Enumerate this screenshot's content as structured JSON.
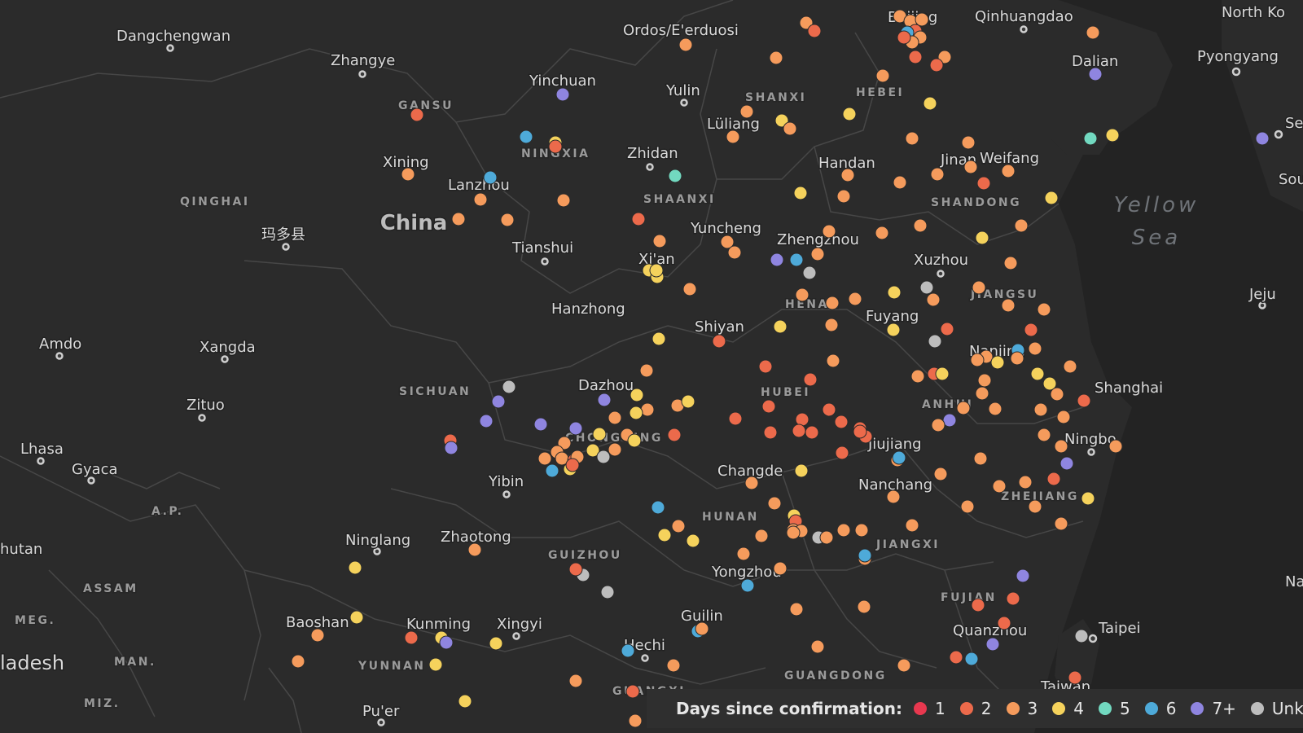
{
  "colors": {
    "background": "#2b2b2b",
    "sea": "#232323",
    "border": "#4a4a4a"
  },
  "map_labels": {
    "cities": [
      "Dangchengwan",
      "Zhangye",
      "Yinchuan",
      "Ordos/E'erduosi",
      "Yulin",
      "Beijing",
      "Qinhuangdao",
      "Dalian",
      "Pyongyang",
      "North Ko",
      "Xining",
      "Lanzhou",
      "Zhidan",
      "Lüliang",
      "Handan",
      "Jinan",
      "Weifang",
      "Tianshui",
      "Yuncheng",
      "Zhengzhou",
      "Xi'an",
      "Xuzhou",
      "Hanzhong",
      "Shiyan",
      "Fuyang",
      "Nanjing",
      "Shanghai",
      "Dazhou",
      "Jiujiang",
      "Ningbo",
      "Changde",
      "Nanchang",
      "Yibin",
      "Zhaotong",
      "Ninglang",
      "Amdo",
      "Xangda",
      "Zituo",
      "Lhasa",
      "Gyaca",
      "Baoshan",
      "Kunming",
      "Xingyi",
      "Yongzhou",
      "Guilin",
      "Hechi",
      "Quanzhou",
      "Taipei",
      "Pu'er",
      "Jeju",
      "Taiwan",
      "Se",
      "Sou",
      "Na",
      "hutan",
      "ladesh",
      "玛多县"
    ],
    "provinces": [
      "GANSU",
      "NINGXIA",
      "SHANXI",
      "HEBEI",
      "QINGHAI",
      "SHAANXI",
      "SHANDONG",
      "HENAN",
      "JIANGSU",
      "SICHUAN",
      "HUBEI",
      "ANHUI",
      "CHONGQING",
      "HUNAN",
      "ZHEJIANG",
      "JIANGXI",
      "GUIZHOU",
      "FUJIAN",
      "YUNNAN",
      "GUANGDONG",
      "GUANGXI",
      "A.P.",
      "ASSAM",
      "MEG.",
      "MAN.",
      "MIZ."
    ],
    "country": "China",
    "sea": [
      "Yellow",
      "Sea"
    ]
  },
  "legend": {
    "title": "Days since confirmation:",
    "items": [
      {
        "label": "1",
        "color": "#e8384f"
      },
      {
        "label": "2",
        "color": "#ec6a4b"
      },
      {
        "label": "3",
        "color": "#f59b5c"
      },
      {
        "label": "4",
        "color": "#f5d25c"
      },
      {
        "label": "5",
        "color": "#72d9c0"
      },
      {
        "label": "6",
        "color": "#4eaad9"
      },
      {
        "label": "7+",
        "color": "#8f85e0"
      },
      {
        "label": "Unkn",
        "color": "#bdbdbd"
      }
    ]
  }
}
